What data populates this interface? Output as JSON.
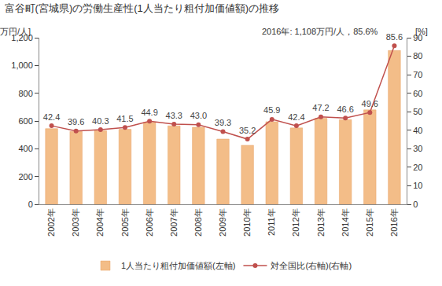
{
  "chart_data": {
    "type": "bar",
    "title": "富谷町(宮城県)の労働生産性(1人当たり粗付加価値額)の推移",
    "y_label": "[万円/人]",
    "y2_label": "[%]",
    "annotation": "2016年: 1,108万円/人，85.6%",
    "categories": [
      "2002年",
      "2003年",
      "2004年",
      "2005年",
      "2006年",
      "2007年",
      "2008年",
      "2009年",
      "2010年",
      "2011年",
      "2012年",
      "2013年",
      "2014年",
      "2015年",
      "2016年"
    ],
    "series": [
      {
        "name": "1人当たり粗付加価値額(左軸)",
        "type": "bar",
        "color": "#f3bd88",
        "values": [
          545,
          525,
          530,
          540,
          590,
          565,
          555,
          470,
          425,
          595,
          550,
          620,
          610,
          680,
          1108
        ]
      },
      {
        "name": "対全国比(右軸)(右軸)",
        "type": "line",
        "axis": "y2",
        "color": "#c0504d",
        "marker": "circle",
        "data_labels": true,
        "values": [
          42.4,
          39.6,
          40.3,
          41.5,
          44.9,
          43.3,
          43.0,
          39.3,
          35.2,
          45.9,
          42.4,
          47.2,
          46.6,
          49.6,
          85.6
        ],
        "value_labels": [
          "42.4",
          "39.6",
          "40.3",
          "41.5",
          "44.9",
          "43.3",
          "43.0",
          "39.3",
          "35.2",
          "45.9",
          "42.4",
          "47.2",
          "46.6",
          "49.6",
          "85.6"
        ]
      }
    ],
    "ylim": [
      0,
      1200
    ],
    "yticks": [
      0,
      200,
      400,
      600,
      800,
      {
        "value": 1000,
        "label": "1,000"
      },
      {
        "value": 1200,
        "label": "1,200"
      }
    ],
    "y2lim": [
      0,
      90
    ],
    "y2ticks": [
      0,
      10,
      20,
      30,
      40,
      50,
      60,
      70,
      80,
      90
    ],
    "grid": false,
    "legend": "bottom"
  }
}
